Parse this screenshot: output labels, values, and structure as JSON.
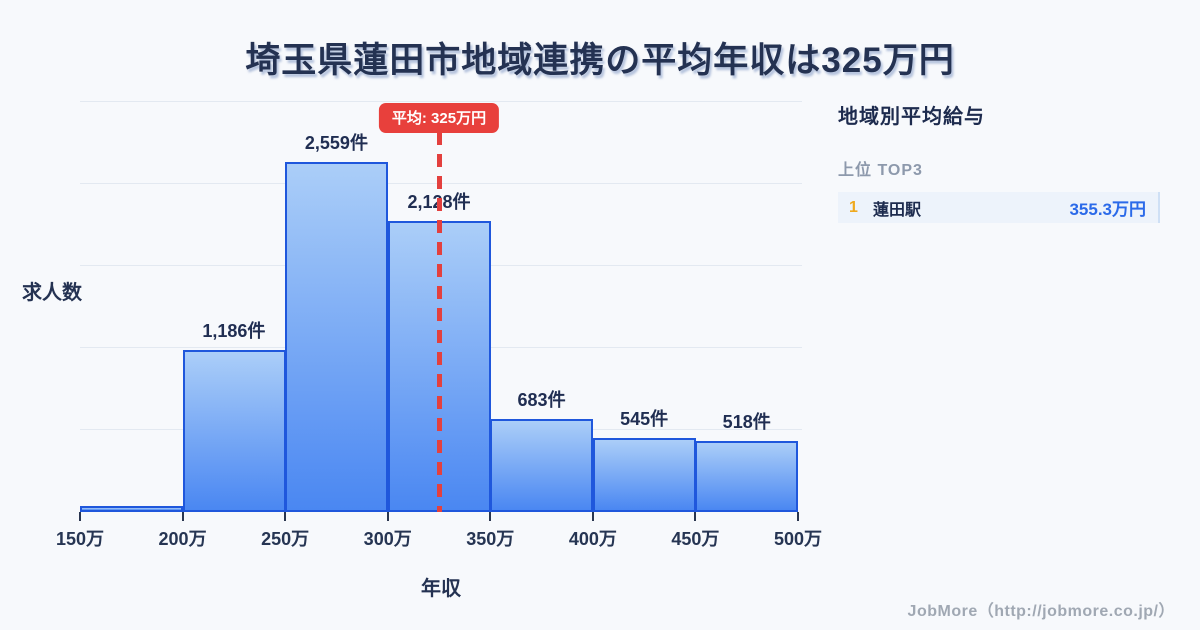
{
  "title": "埼玉県蓮田市地域連携の平均年収は325万円",
  "chart_data": {
    "type": "bar",
    "title": "埼玉県蓮田市地域連携の平均年収は325万円",
    "xlabel": "年収",
    "ylabel": "求人数",
    "x_ticks": [
      "150万",
      "200万",
      "250万",
      "300万",
      "350万",
      "400万",
      "450万",
      "500万"
    ],
    "xlim_man": [
      150,
      500
    ],
    "ylim": [
      0,
      3000
    ],
    "gridline_interval": 600,
    "grid": true,
    "legend": false,
    "bins": [
      {
        "range": "150万-200万",
        "value": 40,
        "label": ""
      },
      {
        "range": "200万-250万",
        "value": 1186,
        "label": "1,186件"
      },
      {
        "range": "250万-300万",
        "value": 2559,
        "label": "2,559件"
      },
      {
        "range": "300万-350万",
        "value": 2128,
        "label": "2,128件"
      },
      {
        "range": "350万-400万",
        "value": 683,
        "label": "683件"
      },
      {
        "range": "400万-450万",
        "value": 545,
        "label": "545件"
      },
      {
        "range": "450万-500万",
        "value": 518,
        "label": "518件"
      }
    ],
    "average": {
      "value_man": 325,
      "label": "平均: 325万円"
    },
    "colors": {
      "bar_fill_top": "#abcef8",
      "bar_fill_bottom": "#4a87f2",
      "bar_border": "#1f57dc",
      "average_red": "#e8403c",
      "gridline": "#e3e9f1",
      "text_dark": "#243252"
    }
  },
  "sidebar": {
    "title": "地域別平均給与",
    "subtitle": "上位 TOP3",
    "rank_color": "#efa91e",
    "value_color": "#2b6ae9",
    "rows": [
      {
        "rank": "1",
        "name": "蓮田駅",
        "value": "355.3万円"
      }
    ]
  },
  "footer": {
    "credit": "JobMore（http://jobmore.co.jp/）"
  }
}
